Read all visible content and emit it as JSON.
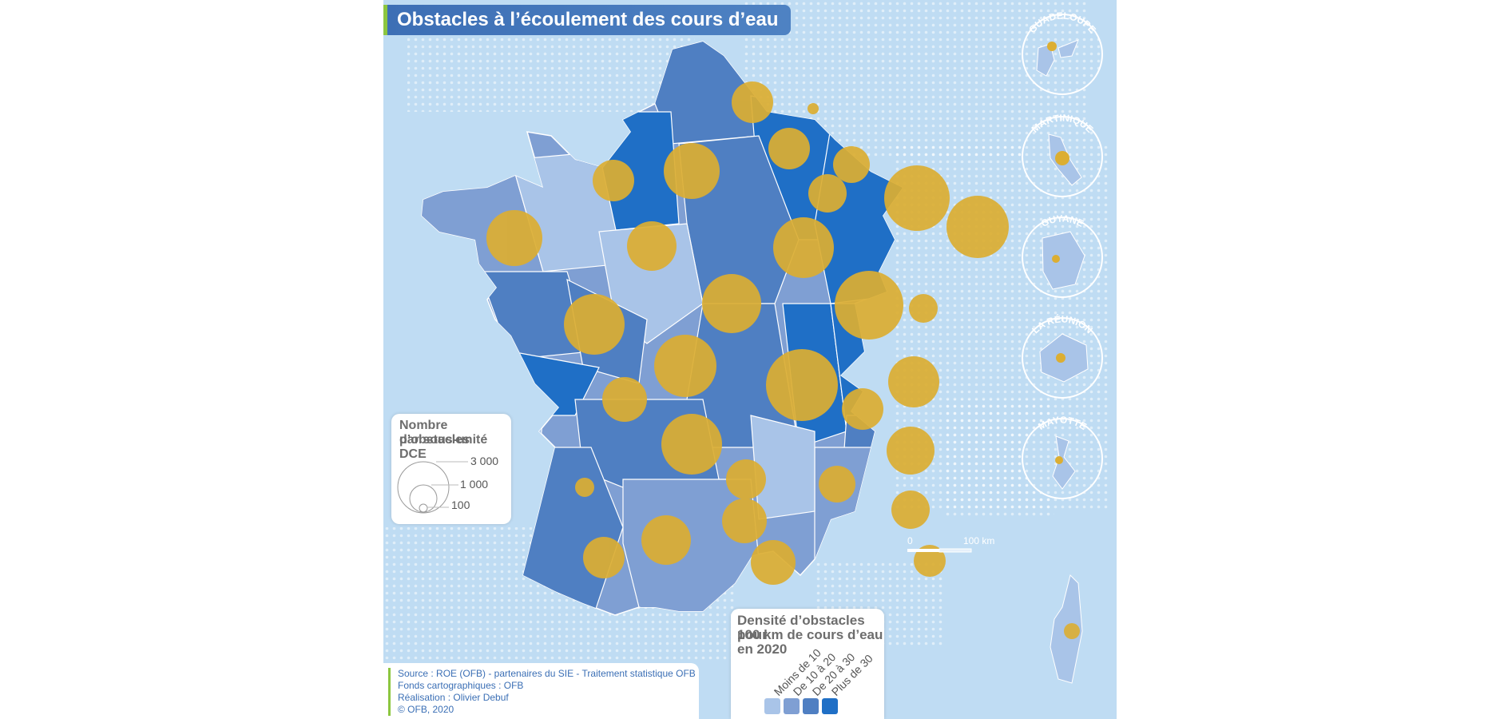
{
  "title": "Obstacles à l’écoulement des cours d’eau",
  "colors": {
    "sea": "#bfdcf3",
    "class_lt10": "#a9c4e8",
    "class_10_20": "#7f9fd3",
    "class_20_30": "#4f7fc2",
    "class_gt30": "#1f6fc6",
    "circle": "#dcae32"
  },
  "size_legend": {
    "title_line1": "Nombre d’obstacles",
    "title_line2": "par sous-unité DCE",
    "values": [
      "3 000",
      "1 000",
      "100"
    ]
  },
  "density_legend": {
    "title_line1": "Densité d’obstacles pour",
    "title_line2": "100 km de cours d’eau",
    "title_line3": "en 2020",
    "classes": [
      "Moins de 10",
      "De 10 à 20",
      "De 20 à 30",
      "Plus de 30"
    ]
  },
  "scale": {
    "zero": "0",
    "end": "100 km"
  },
  "insets": [
    "GUADELOUPE",
    "MARTINIQUE",
    "GUYANE",
    "LA RÉUNION",
    "MAYOTTE"
  ],
  "source": {
    "line1": "Source : ROE (OFB) - partenaires du SIE - Traitement statistique OFB",
    "line2": "Fonds cartographiques : OFB",
    "line3": "Réalisation : Olivier Debuf",
    "line4": "© OFB, 2020"
  }
}
